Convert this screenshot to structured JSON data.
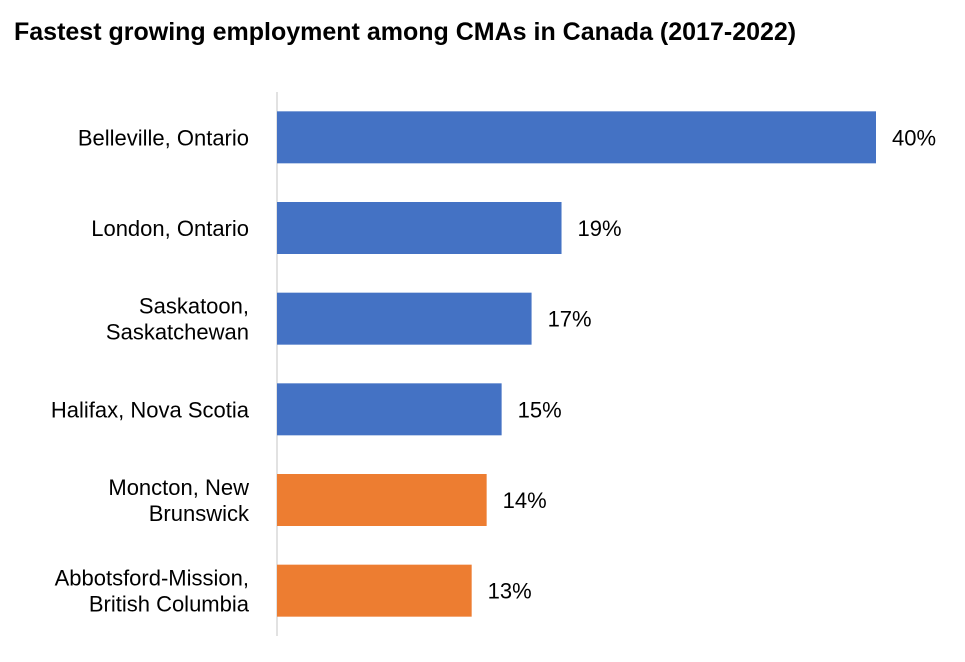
{
  "chart_data": {
    "type": "bar",
    "orientation": "horizontal",
    "title": "Fastest growing employment among CMAs in Canada (2017-2022)",
    "categories": [
      "Belleville, Ontario",
      "London, Ontario",
      "Saskatoon, Saskatchewan",
      "Halifax, Nova Scotia",
      "Moncton, New Brunswick",
      "Abbotsford-Mission, British Columbia"
    ],
    "category_lines": [
      [
        "Belleville, Ontario"
      ],
      [
        "London, Ontario"
      ],
      [
        "Saskatoon,",
        "Saskatchewan"
      ],
      [
        "Halifax, Nova Scotia"
      ],
      [
        "Moncton, New",
        "Brunswick"
      ],
      [
        "Abbotsford-Mission,",
        "British Columbia"
      ]
    ],
    "values": [
      40,
      19,
      17,
      15,
      14,
      13
    ],
    "data_labels": [
      "40%",
      "19%",
      "17%",
      "15%",
      "14%",
      "13%"
    ],
    "bar_colors": [
      "#4472C4",
      "#4472C4",
      "#4472C4",
      "#4472C4",
      "#ED7D31",
      "#ED7D31"
    ],
    "xlim": [
      0,
      40
    ],
    "grid": false,
    "legend": "none"
  }
}
